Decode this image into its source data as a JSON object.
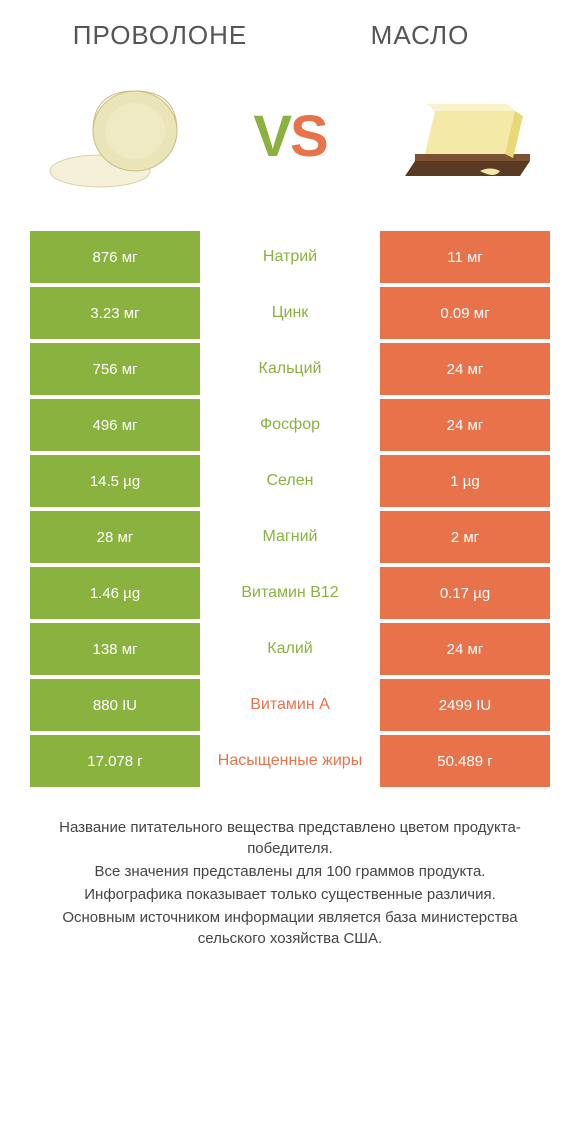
{
  "titles": {
    "left": "ПРОВОЛОНЕ",
    "right": "МАСЛО"
  },
  "vs": {
    "v": "V",
    "s": "S"
  },
  "colors": {
    "left": "#8ab23f",
    "right": "#e8734b",
    "mid_text_left": "#8ab23f",
    "mid_text_right": "#e8734b",
    "background": "#ffffff"
  },
  "rows": [
    {
      "left": "876 мг",
      "label": "Натрий",
      "right": "11 мг",
      "winner": "left"
    },
    {
      "left": "3.23 мг",
      "label": "Цинк",
      "right": "0.09 мг",
      "winner": "left"
    },
    {
      "left": "756 мг",
      "label": "Кальций",
      "right": "24 мг",
      "winner": "left"
    },
    {
      "left": "496 мг",
      "label": "Фосфор",
      "right": "24 мг",
      "winner": "left"
    },
    {
      "left": "14.5 µg",
      "label": "Селен",
      "right": "1 µg",
      "winner": "left"
    },
    {
      "left": "28 мг",
      "label": "Магний",
      "right": "2 мг",
      "winner": "left"
    },
    {
      "left": "1.46 µg",
      "label": "Витамин B12",
      "right": "0.17 µg",
      "winner": "left"
    },
    {
      "left": "138 мг",
      "label": "Калий",
      "right": "24 мг",
      "winner": "left"
    },
    {
      "left": "880 IU",
      "label": "Витамин A",
      "right": "2499 IU",
      "winner": "right"
    },
    {
      "left": "17.078 г",
      "label": "Насыщенные жиры",
      "right": "50.489 г",
      "winner": "right"
    }
  ],
  "footer": [
    "Название питательного вещества представлено цветом продукта-победителя.",
    "Все значения представлены для 100 граммов продукта.",
    "Инфографика показывает только существенные различия.",
    "Основным источником информации является база министерства сельского хозяйства США."
  ]
}
